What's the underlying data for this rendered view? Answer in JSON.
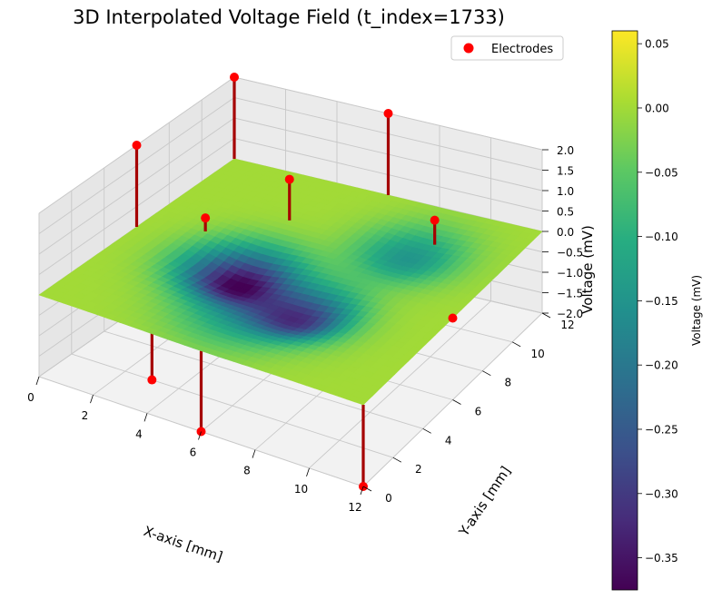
{
  "chart_data": {
    "type": "surface",
    "title": "3D Interpolated Voltage Field (t_index=1733)",
    "xlabel": "X-axis [mm]",
    "ylabel": "Y-axis [mm]",
    "zlabel": "Voltage (mV)",
    "xlim": [
      0,
      12
    ],
    "ylim": [
      0,
      12
    ],
    "zlim": [
      -2,
      2
    ],
    "x_ticks": [
      "0",
      "2",
      "4",
      "6",
      "8",
      "10",
      "12"
    ],
    "y_ticks": [
      "0",
      "2",
      "4",
      "6",
      "8",
      "10",
      "12"
    ],
    "z_ticks": [
      "2.0",
      "1.5",
      "1.0",
      "0.5",
      "0.0",
      "−0.5",
      "−1.0",
      "−1.5",
      "−2.0"
    ],
    "legend": {
      "label": "Electrodes",
      "position": "top-right",
      "marker_color": "#ff0000"
    },
    "colorbar": {
      "label": "Voltage (mV)",
      "min": -0.375,
      "max": 0.06,
      "ticks": [
        "0.05",
        "0.00",
        "−0.05",
        "−0.10",
        "−0.15",
        "−0.20",
        "−0.25",
        "−0.30",
        "−0.35"
      ],
      "colormap": "viridis"
    },
    "electrodes": [
      {
        "x": 0,
        "y": 6,
        "v": 2
      },
      {
        "x": 12,
        "y": 6,
        "v": 0
      },
      {
        "x": 6,
        "y": 12,
        "v": 2
      },
      {
        "x": 6,
        "y": 0,
        "v": -2
      },
      {
        "x": 0,
        "y": 12,
        "v": 2
      },
      {
        "x": 12,
        "y": 0,
        "v": -2
      },
      {
        "x": 3,
        "y": 2,
        "v": -2
      },
      {
        "x": 9,
        "y": 10,
        "v": 0.5
      },
      {
        "x": 10,
        "y": 6,
        "v": -1
      },
      {
        "x": 10,
        "y": 3,
        "v": -1.2
      },
      {
        "x": 4,
        "y": 9,
        "v": 1
      },
      {
        "x": 2,
        "y": 7,
        "v": 0.3
      }
    ],
    "surface_minima": [
      {
        "x": 4.3,
        "y": 5.2,
        "v": -0.37,
        "spread": 1.3
      },
      {
        "x": 7.4,
        "y": 4.1,
        "v": -0.28,
        "spread": 1.2
      },
      {
        "x": 8.6,
        "y": 8.9,
        "v": -0.15,
        "spread": 1.3
      },
      {
        "x": 5.8,
        "y": 2.4,
        "v": -0.09,
        "spread": 1.5
      }
    ],
    "surface_base_v": 0.0
  }
}
